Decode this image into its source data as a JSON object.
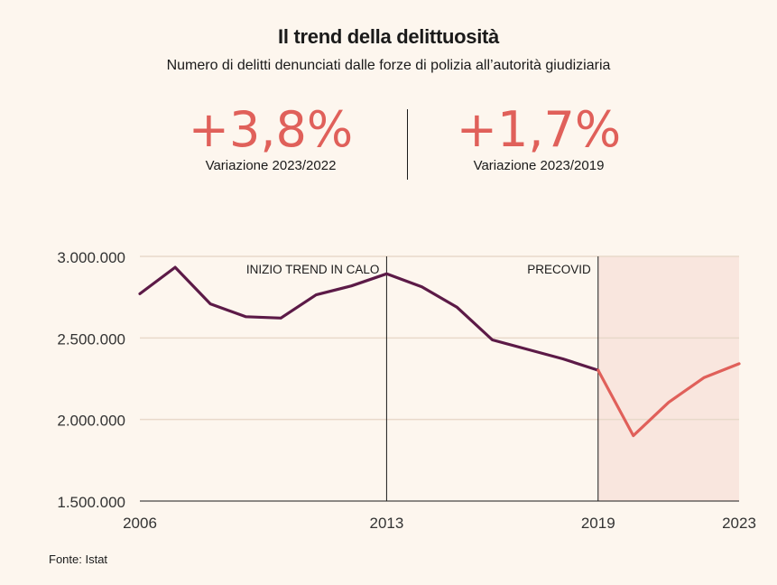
{
  "header": {
    "title": "Il trend della delittuosità",
    "subtitle": "Numero di delitti denunciati dalle forze di polizia all’autorità giudiziaria"
  },
  "kpis": [
    {
      "value": "+3,8%",
      "label": "Variazione 2023/2022"
    },
    {
      "value": "+1,7%",
      "label": "Variazione 2023/2019"
    }
  ],
  "source": "Fonte: Istat",
  "colors": {
    "background": "#fdf6ee",
    "pre_covid_line": "#5c1a47",
    "post_covid_line": "#e0605a",
    "highlight_band": "#f9e6de",
    "grid": "#e8d9ca"
  },
  "chart_data": {
    "type": "line",
    "title": "",
    "xlabel": "",
    "ylabel": "",
    "xlim": [
      2006,
      2023
    ],
    "ylim": [
      1500000,
      3000000
    ],
    "x_ticks": [
      2006,
      2013,
      2019,
      2023
    ],
    "x_tick_labels": [
      "2006",
      "2013",
      "2019",
      "2023"
    ],
    "y_ticks": [
      1500000,
      2000000,
      2500000,
      3000000
    ],
    "y_tick_labels": [
      "1.500.000",
      "2.000.000",
      "2.500.000",
      "3.000.000"
    ],
    "grid": true,
    "series": [
      {
        "color": "#5c1a47",
        "x": [
          2006,
          2007,
          2008,
          2009,
          2010,
          2011,
          2012,
          2013,
          2014,
          2015,
          2016,
          2017,
          2018,
          2019
        ],
        "values": [
          2771000,
          2933000,
          2709000,
          2630000,
          2622000,
          2764000,
          2819000,
          2893000,
          2813000,
          2688000,
          2488000,
          2430000,
          2372000,
          2302000
        ]
      },
      {
        "color": "#e0605a",
        "x": [
          2019,
          2020,
          2021,
          2022,
          2023
        ],
        "values": [
          2302000,
          1901000,
          2105000,
          2256000,
          2342000
        ]
      }
    ],
    "annotations": [
      {
        "x": 2013,
        "text": "INIZIO TREND IN CALO"
      },
      {
        "x": 2019,
        "text": "PRECOVID"
      }
    ],
    "highlight_range": [
      2019,
      2023
    ]
  }
}
